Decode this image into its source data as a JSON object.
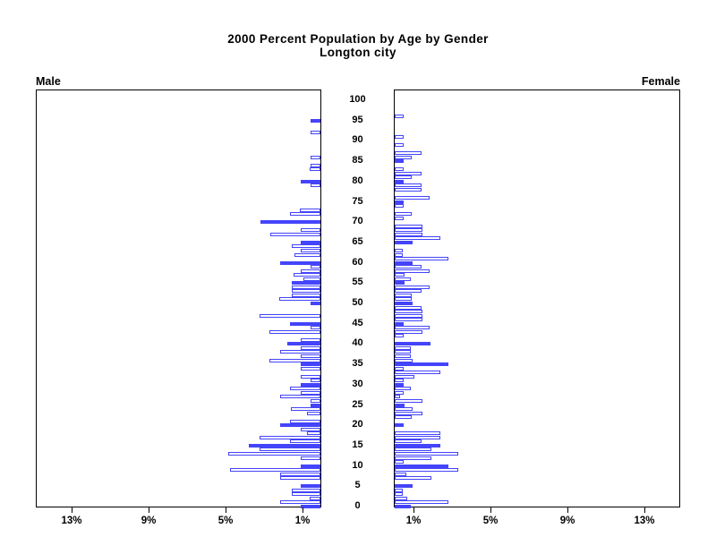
{
  "title": {
    "line1": "2000 Percent Population by Age by Gender",
    "line2": "Longton city"
  },
  "panels": {
    "left_label": "Male",
    "right_label": "Female"
  },
  "colors": {
    "bar_blue": "#4444fa",
    "axis_black": "#000000",
    "background": "#ffffff"
  },
  "chart_data": {
    "type": "bar",
    "variant": "population-pyramid",
    "title": "2000 Percent Population by Age by Gender",
    "subtitle": "Longton city",
    "legend": "none",
    "grid": false,
    "age_axis": {
      "min": 0,
      "max": 100,
      "tick_interval": 5,
      "tick_labels": [
        "0",
        "5",
        "10",
        "15",
        "20",
        "25",
        "30",
        "35",
        "40",
        "45",
        "50",
        "55",
        "60",
        "65",
        "70",
        "75",
        "80",
        "85",
        "90",
        "95",
        "100"
      ]
    },
    "percent_axis": {
      "min": 0,
      "max": 14.84,
      "ticks": [
        1,
        5,
        9,
        13
      ],
      "tick_labels": [
        "1%",
        "5%",
        "9%",
        "13%"
      ],
      "mirrored": true
    },
    "filled_bar_rule": "ages that are multiples of 5 are solid filled; other ages are outlined",
    "series": [
      {
        "name": "Male",
        "side": "left",
        "ages": "0-100 single years, index = age",
        "values_pct": [
          1.0,
          2.1,
          0.55,
          1.5,
          1.5,
          1.0,
          0,
          2.1,
          2.1,
          4.7,
          1.0,
          0,
          1.0,
          4.8,
          3.15,
          3.7,
          1.6,
          3.15,
          0.7,
          1.0,
          2.1,
          1.6,
          0,
          0.7,
          1.55,
          0.5,
          0.5,
          2.1,
          1.0,
          1.6,
          1.0,
          0.5,
          1.0,
          0,
          1.0,
          1.0,
          2.65,
          1.0,
          2.1,
          1.0,
          1.7,
          1.0,
          0,
          2.65,
          0.5,
          1.6,
          0,
          3.15,
          0,
          0,
          0.5,
          2.15,
          1.5,
          1.5,
          1.5,
          1.5,
          0.9,
          1.4,
          1.0,
          0.5,
          2.1,
          0,
          1.35,
          1.0,
          1.5,
          1.0,
          0,
          2.6,
          1.0,
          0,
          3.1,
          0,
          1.6,
          1.05,
          0,
          0,
          0,
          0,
          0,
          0.5,
          1.0,
          0,
          0,
          0.55,
          0.5,
          0,
          0.5,
          0,
          0,
          0,
          0,
          0,
          0.5,
          0,
          0,
          0.5,
          0,
          0,
          0,
          0,
          0
        ]
      },
      {
        "name": "Female",
        "side": "right",
        "ages": "0-100 single years, index = age",
        "values_pct": [
          0.85,
          2.8,
          0.65,
          0.4,
          0.4,
          0.95,
          0,
          1.9,
          0.6,
          3.3,
          2.8,
          0.45,
          1.9,
          3.3,
          1.9,
          2.35,
          1.4,
          2.35,
          2.35,
          0,
          0.45,
          0,
          0.9,
          1.45,
          0.95,
          0.5,
          1.45,
          0.3,
          0.45,
          0.85,
          0.45,
          0.45,
          1.0,
          2.35,
          0.45,
          2.8,
          0.95,
          0.85,
          0.85,
          0.85,
          1.85,
          0,
          0.45,
          1.45,
          1.8,
          0.45,
          1.45,
          1.45,
          1.45,
          1.4,
          0.95,
          0.9,
          0.9,
          1.4,
          1.8,
          0.5,
          0.85,
          0.5,
          1.8,
          1.4,
          0.95,
          2.8,
          0.4,
          0.4,
          0,
          0.95,
          2.35,
          1.45,
          1.45,
          1.45,
          0,
          0.45,
          0.9,
          0,
          0.45,
          0.45,
          1.8,
          0,
          1.4,
          1.4,
          0.45,
          0.9,
          1.4,
          0.45,
          0,
          0.45,
          0.9,
          1.4,
          0,
          0.45,
          0,
          0.45,
          0,
          0,
          0,
          0,
          0.45,
          0,
          0,
          0,
          0
        ]
      }
    ]
  }
}
